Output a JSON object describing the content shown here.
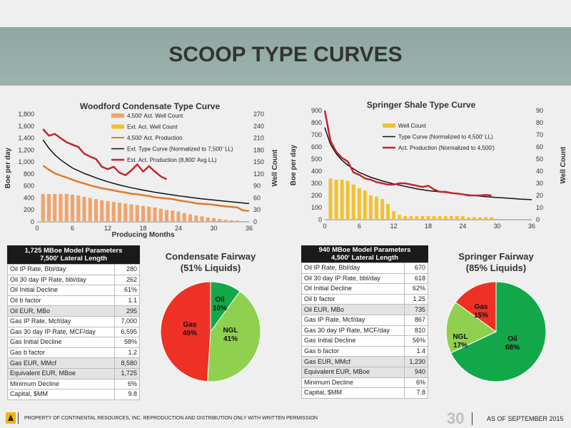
{
  "slide": {
    "title": "SCOOP TYPE CURVES"
  },
  "footer": {
    "disclaimer": "PROPERTY OF CONTINENTAL RESOURCES, INC. REPRODUCTION AND DISTRIBUTION ONLY WITH WRITTEN PERMISSION",
    "page_number": "30",
    "as_of": "AS OF SEPTEMBER 2015"
  },
  "colors": {
    "band": "#9aafaa",
    "orange": "#e07a2c",
    "dark_red": "#c1272d",
    "gold": "#f2c12e",
    "green": "#12a84a",
    "light_green": "#8fd14f",
    "red": "#ee3124"
  },
  "icons": {
    "logo": "continental-logo-icon"
  },
  "chart_data": [
    {
      "type": "bar",
      "title": "Woodford Condensate Type Curve",
      "ylabel": "Boe per day",
      "y2label": "Well Count",
      "xlabel": "Producing Months",
      "xlim": [
        0,
        36
      ],
      "x_ticks": [
        "0",
        "6",
        "12",
        "18",
        "24",
        "30",
        "36"
      ],
      "ylim": [
        0,
        1800
      ],
      "y_ticks": [
        "0",
        "200",
        "400",
        "600",
        "800",
        "1,000",
        "1,200",
        "1,400",
        "1,600",
        "1,800"
      ],
      "y2lim": [
        0,
        270
      ],
      "y2_ticks": [
        "0",
        "30",
        "60",
        "90",
        "120",
        "150",
        "180",
        "210",
        "240",
        "270"
      ],
      "legend": [
        "4,500' Act. Well Count",
        "Ext. Act. Well Count",
        "4,500' Act. Production",
        "Ext. Type Curve (Normalized to 7,500' LL)",
        "Ext. Act. Production (8,800' Avg LL)"
      ],
      "bars_well_count": {
        "name": "4,500' Act. Well Count",
        "x": [
          1,
          2,
          3,
          4,
          5,
          6,
          7,
          8,
          9,
          10,
          11,
          12,
          13,
          14,
          15,
          16,
          17,
          18,
          19,
          20,
          21,
          22,
          23,
          24,
          25,
          26,
          27,
          28,
          29,
          30,
          31,
          32,
          33,
          34,
          35
        ],
        "values": [
          70,
          70,
          70,
          70,
          70,
          68,
          66,
          63,
          60,
          57,
          54,
          52,
          50,
          48,
          46,
          44,
          42,
          40,
          38,
          36,
          33,
          30,
          28,
          26,
          22,
          19,
          16,
          14,
          11,
          9,
          7,
          5,
          4,
          3,
          2
        ]
      },
      "bars_ext_well_count": {
        "name": "Ext. Act. Well Count",
        "x": [
          1,
          2,
          3,
          4,
          5,
          6,
          7,
          8,
          9,
          10
        ],
        "values": [
          3,
          3,
          3,
          2,
          2,
          2,
          2,
          1,
          1,
          1
        ]
      },
      "series": [
        {
          "name": "4,500' Act. Production",
          "x": [
            1,
            2,
            3,
            4,
            5,
            6,
            7,
            8,
            9,
            10,
            11,
            12,
            13,
            14,
            15,
            16,
            17,
            18,
            19,
            20,
            21,
            22,
            23,
            24,
            25,
            26,
            27,
            28,
            29,
            30,
            31,
            32,
            33,
            34,
            35,
            36
          ],
          "values": [
            940,
            870,
            810,
            775,
            740,
            705,
            670,
            640,
            610,
            585,
            560,
            545,
            525,
            505,
            490,
            470,
            460,
            445,
            430,
            410,
            400,
            390,
            380,
            360,
            345,
            330,
            310,
            300,
            295,
            285,
            270,
            260,
            250,
            240,
            190,
            185
          ]
        },
        {
          "name": "Ext. Type Curve (Normalized to 7,500' LL)",
          "x": [
            1,
            2,
            3,
            4,
            6,
            8,
            10,
            12,
            14,
            16,
            18,
            20,
            22,
            24,
            26,
            28,
            30,
            32,
            34,
            36
          ],
          "values": [
            1370,
            1230,
            1120,
            1035,
            900,
            810,
            735,
            670,
            615,
            570,
            530,
            495,
            465,
            435,
            410,
            385,
            365,
            345,
            325,
            305
          ]
        },
        {
          "name": "Ext. Act. Production (8,800' Avg LL)",
          "x": [
            1,
            2,
            3,
            4,
            5,
            6,
            7,
            8,
            9,
            10,
            11,
            12,
            13,
            14,
            15,
            16,
            17,
            18,
            19,
            20,
            21,
            22
          ],
          "values": [
            1550,
            1440,
            1470,
            1400,
            1330,
            1290,
            1250,
            1140,
            1090,
            1050,
            920,
            880,
            920,
            820,
            780,
            860,
            960,
            840,
            930,
            840,
            760,
            710
          ]
        }
      ]
    },
    {
      "type": "bar",
      "title": "Springer Shale Type Curve",
      "ylabel": "Boe per day",
      "y2label": "Well Count",
      "xlim": [
        0,
        36
      ],
      "x_ticks": [
        "0",
        "6",
        "12",
        "18",
        "24",
        "30",
        "36"
      ],
      "ylim": [
        0,
        900
      ],
      "y_ticks": [
        "0",
        "100",
        "200",
        "300",
        "400",
        "500",
        "600",
        "700",
        "800",
        "900"
      ],
      "y2lim": [
        0,
        90
      ],
      "y2_ticks": [
        "0",
        "10",
        "20",
        "30",
        "40",
        "50",
        "60",
        "70",
        "80",
        "90"
      ],
      "legend": [
        "Well Count",
        "Type Curve (Normalized to 4,500' LL)",
        "Act. Production (Normalized to 4,500')"
      ],
      "bars_well_count": {
        "name": "Well Count",
        "x": [
          1,
          2,
          3,
          4,
          5,
          6,
          7,
          8,
          9,
          10,
          11,
          12,
          13,
          14,
          15,
          16,
          17,
          18,
          19,
          20,
          21,
          22,
          23,
          24,
          25,
          26,
          27,
          28,
          29
        ],
        "values": [
          34,
          33,
          33,
          32,
          29,
          26,
          24,
          20,
          19,
          17,
          13,
          7,
          4,
          3,
          3,
          3,
          3,
          3,
          3,
          3,
          3,
          3,
          3,
          3,
          2,
          2,
          2,
          2,
          2
        ]
      },
      "series": [
        {
          "name": "Type Curve (Normalized to 4,500' LL)",
          "x": [
            0,
            1,
            2,
            3,
            4,
            6,
            8,
            10,
            12,
            14,
            16,
            18,
            20,
            22,
            24,
            26,
            28,
            30,
            32,
            34,
            36
          ],
          "values": [
            760,
            620,
            545,
            490,
            450,
            390,
            350,
            320,
            295,
            275,
            255,
            240,
            230,
            220,
            210,
            200,
            190,
            183,
            177,
            170,
            165
          ]
        },
        {
          "name": "Act. Production (Normalized to 4,500')",
          "x": [
            0,
            1,
            2,
            3,
            4,
            5,
            6,
            7,
            8,
            9,
            10,
            11,
            12,
            13,
            14,
            15,
            16,
            17,
            18,
            19,
            20,
            21,
            22,
            23,
            24,
            25,
            26,
            27,
            28,
            29
          ],
          "values": [
            900,
            650,
            560,
            510,
            480,
            390,
            370,
            340,
            330,
            310,
            300,
            290,
            290,
            300,
            300,
            290,
            280,
            270,
            280,
            250,
            230,
            230,
            220,
            215,
            210,
            200,
            200,
            200,
            205,
            200
          ]
        }
      ]
    },
    {
      "type": "pie",
      "title": "Condensate Fairway",
      "subtitle": "(51% Liquids)",
      "labels": [
        "Oil",
        "NGL",
        "Gas"
      ],
      "values": [
        10,
        41,
        49
      ],
      "value_labels": [
        "10%",
        "41%",
        "49%"
      ],
      "colors": [
        "#12a84a",
        "#8fd14f",
        "#ee3124"
      ]
    },
    {
      "type": "pie",
      "title": "Springer Fairway",
      "subtitle": "(85% Liquids)",
      "labels": [
        "Oil",
        "NGL",
        "Gas"
      ],
      "values": [
        68,
        17,
        15
      ],
      "value_labels": [
        "68%",
        "17%",
        "15%"
      ],
      "colors": [
        "#12a84a",
        "#8fd14f",
        "#ee3124"
      ]
    },
    {
      "type": "table",
      "title": "1,725 MBoe Model Parameters",
      "subtitle": "7,500' Lateral Length",
      "rows": [
        [
          "Oil IP Rate, Bbl/day",
          "280"
        ],
        [
          "Oil 30 day IP Rate, bbl/day",
          "262"
        ],
        [
          "Oil Initial Decline",
          "61%"
        ],
        [
          "Oil b factor",
          "1.1"
        ],
        [
          "Oil EUR, MBo",
          "295"
        ],
        [
          "Gas IP Rate, Mcf/day",
          "7,000"
        ],
        [
          "Gas 30 day IP Rate, MCF/day",
          "6,595"
        ],
        [
          "Gas Initial Decline",
          "58%"
        ],
        [
          "Gas b factor",
          "1.2"
        ],
        [
          "Gas EUR, MMcf",
          "8,580"
        ],
        [
          "Equivalent EUR, MBoe",
          "1,725"
        ],
        [
          "Minimum Decline",
          "6%"
        ],
        [
          "Capital, $MM",
          "9.8"
        ]
      ]
    },
    {
      "type": "table",
      "title": "940 MBoe Model Parameters",
      "subtitle": "4,500' Lateral Length",
      "rows": [
        [
          "Oil IP Rate, Bbl/day",
          "670"
        ],
        [
          "Oil 30 day IP Rate, bbl/day",
          "618"
        ],
        [
          "Oil Initial Decline",
          "62%"
        ],
        [
          "Oil b factor",
          "1.25"
        ],
        [
          "Oil EUR, MBo",
          "735"
        ],
        [
          "Gas IP Rate, Mcf/day",
          "867"
        ],
        [
          "Gas 30 day IP Rate, MCF/day",
          "810"
        ],
        [
          "Gas Initial Decline",
          "56%"
        ],
        [
          "Gas b factor",
          "1.4"
        ],
        [
          "Gas EUR, MMcf",
          "1,230"
        ],
        [
          "Equivalent EUR, MBoe",
          "940"
        ],
        [
          "Minimum Decline",
          "6%"
        ],
        [
          "Capital, $MM",
          "7.8"
        ]
      ]
    }
  ]
}
